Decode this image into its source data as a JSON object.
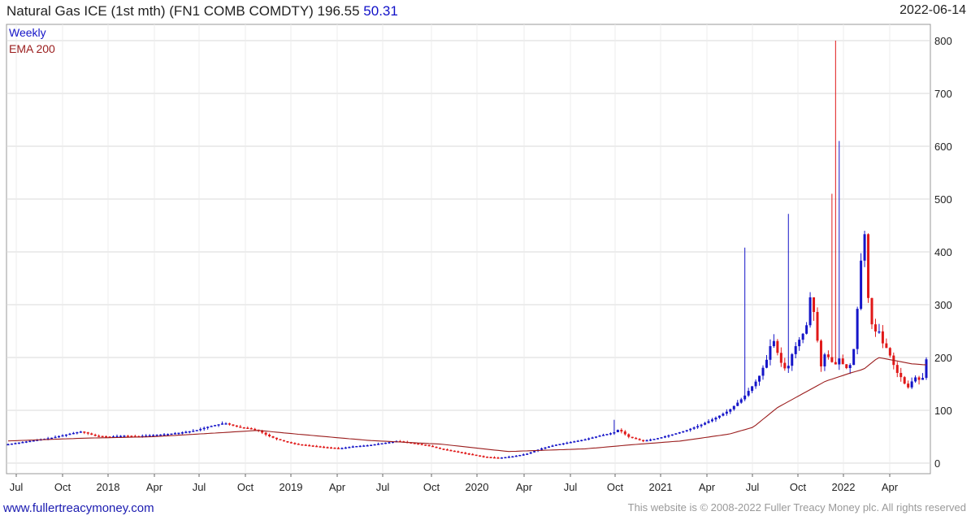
{
  "header": {
    "title": "Natural Gas ICE (1st mth) (FN1 COMB COMDTY) 196.55",
    "change": "50.31",
    "date": "2022-06-14"
  },
  "footer": {
    "site": "www.fullertreacymoney.com",
    "copyright": "This website is © 2008-2022 Fuller Treacy Money plc. All rights reserved"
  },
  "chart_data": {
    "type": "candlestick",
    "legend": [
      "Weekly",
      "EMA 200"
    ],
    "colors": {
      "up": "#1515c8",
      "down": "#e01818",
      "ema": "#9a1c1c",
      "grid": "#d8d8d8"
    },
    "ylim": [
      0,
      820
    ],
    "yticks": [
      0,
      100,
      200,
      300,
      400,
      500,
      600,
      700,
      800
    ],
    "xticks": [
      "Jul",
      "Oct",
      "2018",
      "Apr",
      "Jul",
      "Oct",
      "2019",
      "Apr",
      "Jul",
      "Oct",
      "2020",
      "Apr",
      "Jul",
      "Oct",
      "2021",
      "Apr",
      "Jul",
      "Oct",
      "2022",
      "Apr"
    ],
    "close_points": [
      [
        0,
        36
      ],
      [
        3,
        40
      ],
      [
        6,
        44
      ],
      [
        9,
        48
      ],
      [
        12,
        54
      ],
      [
        15,
        60
      ],
      [
        16,
        58
      ],
      [
        18,
        52
      ],
      [
        21,
        50
      ],
      [
        24,
        52
      ],
      [
        27,
        51
      ],
      [
        30,
        53
      ],
      [
        33,
        55
      ],
      [
        36,
        58
      ],
      [
        39,
        62
      ],
      [
        42,
        70
      ],
      [
        45,
        76
      ],
      [
        48,
        68
      ],
      [
        50,
        66
      ],
      [
        52,
        62
      ],
      [
        54,
        52
      ],
      [
        56,
        45
      ],
      [
        58,
        40
      ],
      [
        60,
        36
      ],
      [
        63,
        33
      ],
      [
        66,
        30
      ],
      [
        69,
        28
      ],
      [
        72,
        32
      ],
      [
        75,
        34
      ],
      [
        78,
        38
      ],
      [
        81,
        42
      ],
      [
        84,
        38
      ],
      [
        87,
        34
      ],
      [
        90,
        27
      ],
      [
        93,
        22
      ],
      [
        96,
        17
      ],
      [
        99,
        12
      ],
      [
        102,
        10
      ],
      [
        105,
        13
      ],
      [
        108,
        18
      ],
      [
        111,
        28
      ],
      [
        114,
        35
      ],
      [
        117,
        40
      ],
      [
        120,
        45
      ],
      [
        123,
        52
      ],
      [
        126,
        58
      ],
      [
        127,
        64
      ],
      [
        129,
        50
      ],
      [
        132,
        42
      ],
      [
        135,
        47
      ],
      [
        138,
        54
      ],
      [
        141,
        62
      ],
      [
        144,
        72
      ],
      [
        147,
        85
      ],
      [
        150,
        100
      ],
      [
        153,
        125
      ],
      [
        156,
        160
      ],
      [
        158,
        200
      ],
      [
        159,
        240
      ],
      [
        160,
        210
      ],
      [
        161,
        185
      ],
      [
        162,
        175
      ],
      [
        163,
        205
      ],
      [
        164,
        225
      ],
      [
        165,
        240
      ],
      [
        166,
        255
      ],
      [
        167,
        325
      ],
      [
        168,
        260
      ],
      [
        169,
        180
      ],
      [
        170,
        210
      ],
      [
        171,
        195
      ],
      [
        172,
        185
      ],
      [
        173,
        200
      ],
      [
        174,
        180
      ],
      [
        175,
        180
      ],
      [
        176,
        220
      ],
      [
        177,
        330
      ],
      [
        178,
        460
      ],
      [
        179,
        300
      ],
      [
        180,
        245
      ],
      [
        181,
        255
      ],
      [
        182,
        225
      ],
      [
        183,
        215
      ],
      [
        184,
        190
      ],
      [
        185,
        170
      ],
      [
        186,
        160
      ],
      [
        187,
        140
      ],
      [
        188,
        155
      ],
      [
        189,
        165
      ],
      [
        190,
        150
      ],
      [
        191,
        196.55
      ]
    ],
    "ema_points": [
      [
        0,
        42
      ],
      [
        15,
        47
      ],
      [
        30,
        50
      ],
      [
        45,
        58
      ],
      [
        52,
        62
      ],
      [
        60,
        55
      ],
      [
        75,
        43
      ],
      [
        90,
        36
      ],
      [
        104,
        22
      ],
      [
        120,
        27
      ],
      [
        130,
        35
      ],
      [
        140,
        42
      ],
      [
        150,
        55
      ],
      [
        155,
        68
      ],
      [
        160,
        105
      ],
      [
        165,
        130
      ],
      [
        170,
        155
      ],
      [
        175,
        170
      ],
      [
        178,
        178
      ],
      [
        181,
        200
      ],
      [
        184,
        195
      ],
      [
        188,
        188
      ],
      [
        191,
        186
      ]
    ]
  }
}
